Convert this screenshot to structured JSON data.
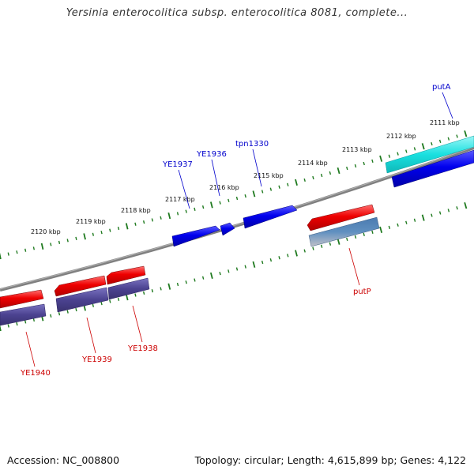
{
  "title": "Yersinia enterocolitica subsp. enterocolitica 8081, complete...",
  "footer": {
    "accession": "Accession: NC_008800",
    "info": "Topology: circular; Length: 4,615,899 bp; Genes: 4,122"
  },
  "colors": {
    "backbone": "#808080",
    "tick_marks": "#1f7a1f",
    "forward_gene": "#0000ee",
    "reverse_gene": "#ee0000",
    "forward_label": "#0000cc",
    "reverse_label": "#cc0000",
    "cds_forward_special": "#19e0e0",
    "cds_reverse": "#4b4290",
    "cds_reverse_special": "#4a7ab0"
  },
  "tick_labels": [
    "2111 kbp",
    "2112 kbp",
    "2113 kbp",
    "2114 kbp",
    "2115 kbp",
    "2116 kbp",
    "2117 kbp",
    "2118 kbp",
    "2119 kbp",
    "2120 kbp"
  ],
  "genes_forward": [
    "putA",
    "tpn1330",
    "YE1936",
    "YE1937"
  ],
  "genes_reverse": [
    "putP",
    "YE1938",
    "YE1939",
    "YE1940"
  ]
}
